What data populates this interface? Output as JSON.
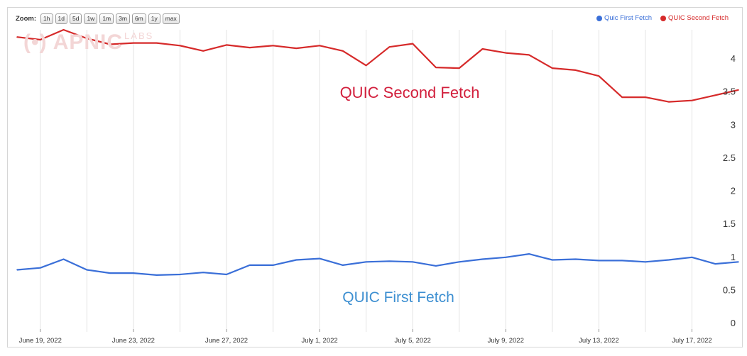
{
  "zoom": {
    "label": "Zoom:",
    "buttons": [
      "1h",
      "1d",
      "5d",
      "1w",
      "1m",
      "3m",
      "6m",
      "1y",
      "max"
    ]
  },
  "watermark": {
    "main": "(•) APNIC",
    "sub": "LABS"
  },
  "legend": [
    {
      "name": "Quic First Fetch",
      "color": "#3a6fd8"
    },
    {
      "name": "QUIC Second Fetch",
      "color": "#d62a2a"
    }
  ],
  "chart_data": {
    "type": "line",
    "x": [
      "2022-06-18",
      "2022-06-19",
      "2022-06-20",
      "2022-06-21",
      "2022-06-22",
      "2022-06-23",
      "2022-06-24",
      "2022-06-25",
      "2022-06-26",
      "2022-06-27",
      "2022-06-28",
      "2022-06-29",
      "2022-06-30",
      "2022-07-01",
      "2022-07-02",
      "2022-07-03",
      "2022-07-04",
      "2022-07-05",
      "2022-07-06",
      "2022-07-07",
      "2022-07-08",
      "2022-07-09",
      "2022-07-10",
      "2022-07-11",
      "2022-07-12",
      "2022-07-13",
      "2022-07-14",
      "2022-07-15",
      "2022-07-16",
      "2022-07-17",
      "2022-07-18",
      "2022-07-19"
    ],
    "x_tick_labels": [
      "June 19, 2022",
      "June 23, 2022",
      "June 27, 2022",
      "July 1, 2022",
      "July 5, 2022",
      "July 9, 2022",
      "July 13, 2022",
      "July 17, 2022"
    ],
    "x_tick_dates": [
      "2022-06-19",
      "2022-06-23",
      "2022-06-27",
      "2022-07-01",
      "2022-07-05",
      "2022-07-09",
      "2022-07-13",
      "2022-07-17"
    ],
    "y_ticks": [
      "0",
      "0.5",
      "1",
      "1.5",
      "2",
      "2.5",
      "3",
      "3.5",
      "4"
    ],
    "ylim": [
      0,
      4.5
    ],
    "grid": true,
    "legend_position": "top-right",
    "series": [
      {
        "name": "QUIC Second Fetch",
        "annotation": "QUIC Second Fetch",
        "color": "#d62a2a",
        "values": [
          4.33,
          4.29,
          4.44,
          4.31,
          4.22,
          4.24,
          4.24,
          4.2,
          4.12,
          4.21,
          4.17,
          4.2,
          4.16,
          4.2,
          4.12,
          3.9,
          4.18,
          4.23,
          3.87,
          3.86,
          4.15,
          4.09,
          4.06,
          3.86,
          3.83,
          3.74,
          3.42,
          3.42,
          3.35,
          3.37,
          3.45,
          3.53
        ]
      },
      {
        "name": "Quic First Fetch",
        "annotation": "QUIC First Fetch",
        "color": "#3a6fd8",
        "values": [
          0.81,
          0.84,
          0.97,
          0.81,
          0.76,
          0.76,
          0.73,
          0.74,
          0.77,
          0.74,
          0.88,
          0.88,
          0.96,
          0.98,
          0.88,
          0.93,
          0.94,
          0.93,
          0.87,
          0.93,
          0.97,
          1.0,
          1.05,
          0.96,
          0.97,
          0.95,
          0.95,
          0.93,
          0.96,
          1.0,
          0.9,
          0.93
        ]
      }
    ]
  }
}
